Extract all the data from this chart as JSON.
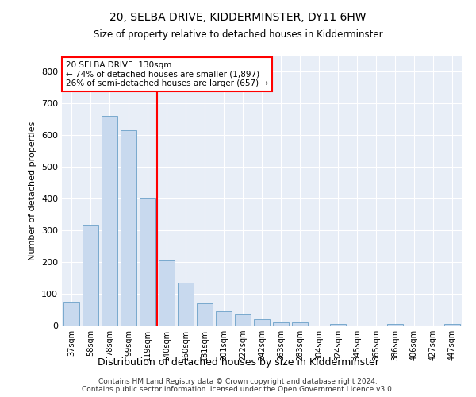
{
  "title1": "20, SELBA DRIVE, KIDDERMINSTER, DY11 6HW",
  "title2": "Size of property relative to detached houses in Kidderminster",
  "xlabel": "Distribution of detached houses by size in Kidderminster",
  "ylabel": "Number of detached properties",
  "categories": [
    "37sqm",
    "58sqm",
    "78sqm",
    "99sqm",
    "119sqm",
    "140sqm",
    "160sqm",
    "181sqm",
    "201sqm",
    "222sqm",
    "242sqm",
    "263sqm",
    "283sqm",
    "304sqm",
    "324sqm",
    "345sqm",
    "365sqm",
    "386sqm",
    "406sqm",
    "427sqm",
    "447sqm"
  ],
  "values": [
    75,
    315,
    660,
    615,
    400,
    205,
    135,
    70,
    45,
    35,
    20,
    10,
    10,
    0,
    5,
    0,
    0,
    5,
    0,
    0,
    5
  ],
  "bar_color": "#c8d9ee",
  "bar_edge_color": "#6a9fc8",
  "vline_x": 4.5,
  "vline_color": "red",
  "annotation_text": "20 SELBA DRIVE: 130sqm\n← 74% of detached houses are smaller (1,897)\n26% of semi-detached houses are larger (657) →",
  "annotation_box_color": "white",
  "annotation_box_edge": "red",
  "ylim": [
    0,
    850
  ],
  "yticks": [
    0,
    100,
    200,
    300,
    400,
    500,
    600,
    700,
    800
  ],
  "footer1": "Contains HM Land Registry data © Crown copyright and database right 2024.",
  "footer2": "Contains public sector information licensed under the Open Government Licence v3.0.",
  "bg_color": "#ffffff",
  "plot_bg_color": "#e8eef7"
}
